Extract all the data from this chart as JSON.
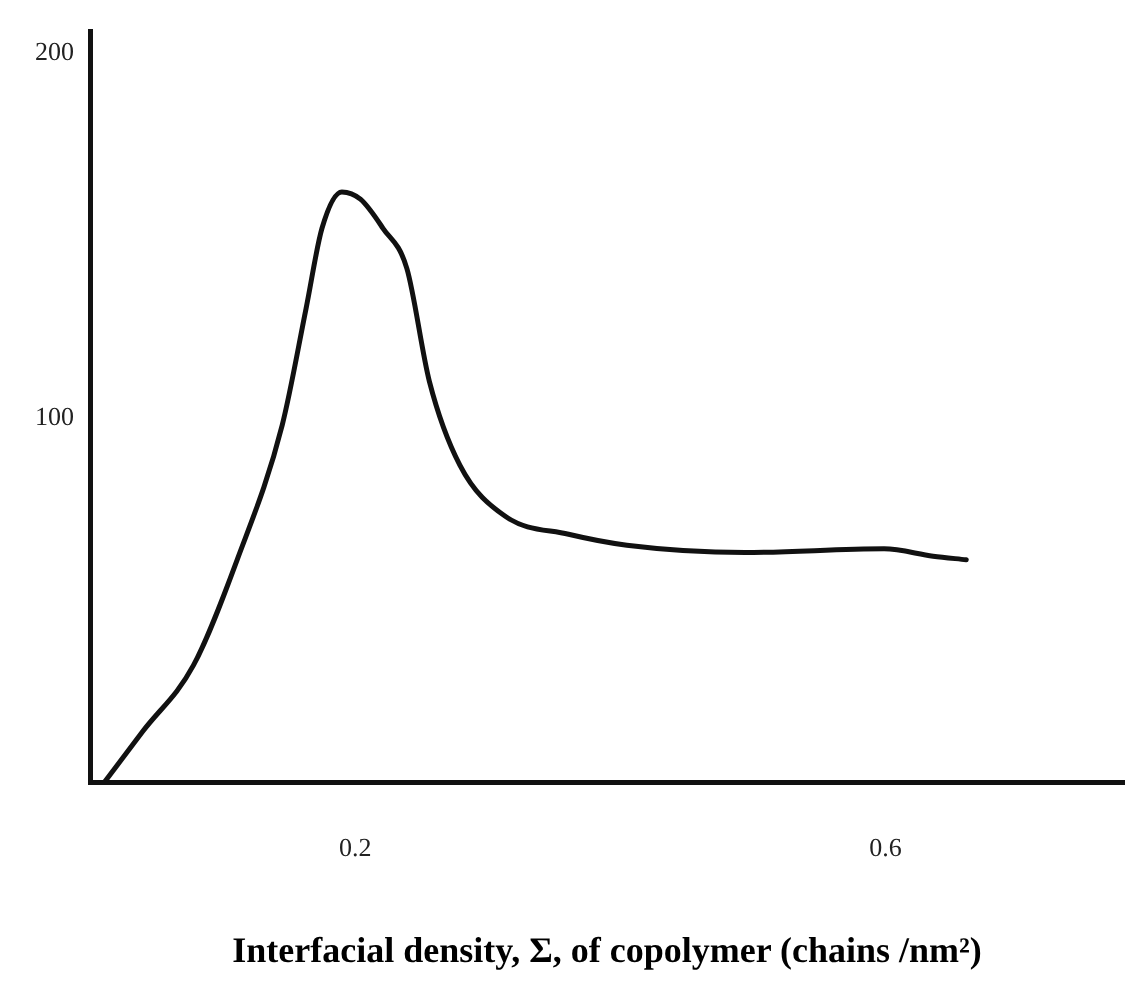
{
  "chart_data": {
    "type": "line",
    "xlabel": "Interfacial density, Σ, of copolymer (chains /nm²)",
    "x": [
      0.011,
      0.04,
      0.078,
      0.111,
      0.145,
      0.163,
      0.175,
      0.19,
      0.204,
      0.221,
      0.239,
      0.256,
      0.279,
      0.313,
      0.361,
      0.405,
      0.494,
      0.599,
      0.636,
      0.661
    ],
    "series": [
      {
        "color": "#111111",
        "values": [
          0,
          14,
          32,
          61,
          98,
          130,
          152,
          162,
          160,
          152,
          141,
          110,
          87,
          73,
          68,
          65,
          63,
          64,
          62,
          61
        ]
      }
    ],
    "xlim": [
      0,
      0.78
    ],
    "xticks": [
      0.2,
      0.6
    ],
    "ylim": [
      0,
      206
    ],
    "yticks": [
      100,
      200
    ],
    "grid": false,
    "legend": false,
    "marker": "none",
    "line_style": "solid"
  }
}
